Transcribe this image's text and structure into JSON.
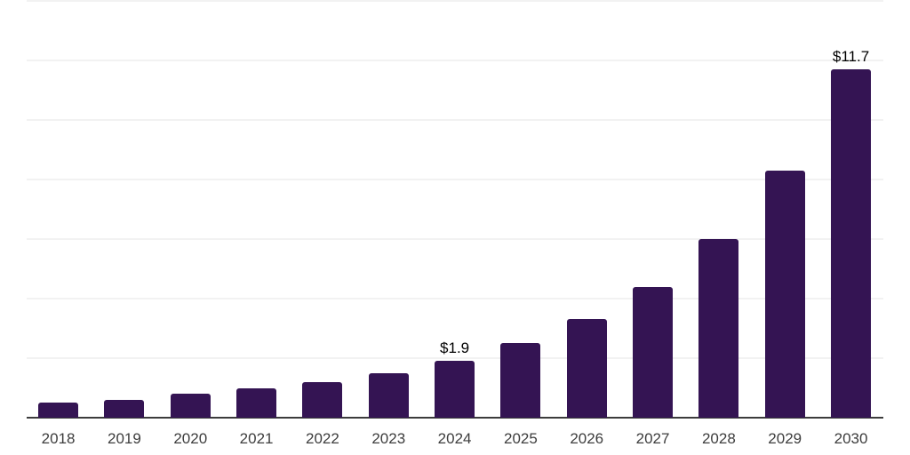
{
  "chart_data": {
    "type": "bar",
    "title": "",
    "xlabel": "",
    "ylabel": "",
    "categories": [
      "2018",
      "2019",
      "2020",
      "2021",
      "2022",
      "2023",
      "2024",
      "2025",
      "2026",
      "2027",
      "2028",
      "2029",
      "2030"
    ],
    "values": [
      0.5,
      0.6,
      0.8,
      1.0,
      1.2,
      1.5,
      1.9,
      2.5,
      3.3,
      4.4,
      6.0,
      8.3,
      11.7
    ],
    "bar_labels": [
      "",
      "",
      "",
      "",
      "",
      "",
      "$1.9",
      "",
      "",
      "",
      "",
      "",
      "$11.7"
    ],
    "annotations": [
      {
        "category": "2024",
        "text": "$1.9"
      },
      {
        "category": "2030",
        "text": "$11.7"
      }
    ],
    "ylim": [
      0,
      14
    ],
    "gridline_step": 2,
    "grid": "horizontal-only",
    "legend_position": "none",
    "y_tick_labels_visible": false,
    "colors": {
      "background": "#ffffff",
      "bar": "#341453",
      "gridline": "#f2f2f2",
      "axis_line": "#3c3c3c",
      "value_label_text": "#000000",
      "tick_label_text": "#3d3d3d"
    }
  }
}
